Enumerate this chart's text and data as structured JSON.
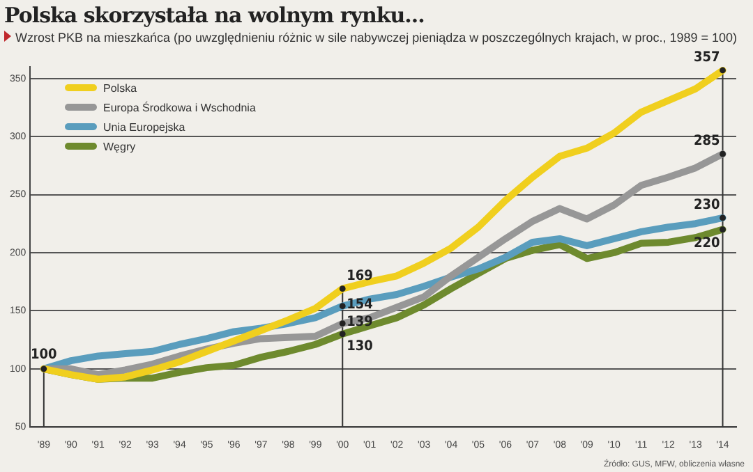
{
  "chart_data": {
    "type": "line",
    "title": "Polska skorzystała na wolnym rynku...",
    "subtitle": "Wzrost PKB na mieszkańca (po uwzględnieniu różnic w sile nabywczej pieniądza w poszczególnych krajach, w proc., 1989 = 100)",
    "categories": [
      "'89",
      "'90",
      "'91",
      "'92",
      "'93",
      "'94",
      "'95",
      "'96",
      "'97",
      "'98",
      "'99",
      "'00",
      "'01",
      "'02",
      "'03",
      "'04",
      "'05",
      "'06",
      "'07",
      "'08",
      "'09",
      "'10",
      "'11",
      "'12",
      "'13",
      "'14"
    ],
    "series": [
      {
        "name": "Polska",
        "color": "#f0cf1e",
        "values": [
          100,
          95,
          91,
          93,
          99,
          106,
          115,
          124,
          133,
          142,
          152,
          169,
          175,
          180,
          191,
          204,
          222,
          245,
          265,
          283,
          290,
          303,
          321,
          331,
          341,
          357
        ],
        "value_labels": [
          "100",
          null,
          null,
          null,
          null,
          null,
          null,
          null,
          null,
          null,
          null,
          "169",
          null,
          null,
          null,
          null,
          null,
          null,
          null,
          null,
          null,
          null,
          null,
          null,
          null,
          "357"
        ]
      },
      {
        "name": "Europa Środkowa i Wschodnia",
        "color": "#979797",
        "values": [
          100,
          100,
          95,
          99,
          104,
          111,
          117,
          122,
          126,
          127,
          128,
          139,
          144,
          153,
          162,
          180,
          196,
          212,
          227,
          238,
          229,
          241,
          258,
          265,
          273,
          285
        ],
        "value_labels": [
          null,
          null,
          null,
          null,
          null,
          null,
          null,
          null,
          null,
          null,
          null,
          "139",
          null,
          null,
          null,
          null,
          null,
          null,
          null,
          null,
          null,
          null,
          null,
          null,
          null,
          "285"
        ]
      },
      {
        "name": "Unia Europejska",
        "color": "#5a9dbd",
        "values": [
          100,
          107,
          111,
          113,
          115,
          121,
          126,
          132,
          135,
          139,
          144,
          154,
          160,
          164,
          171,
          179,
          186,
          196,
          209,
          212,
          206,
          212,
          218,
          222,
          225,
          230
        ],
        "value_labels": [
          null,
          null,
          null,
          null,
          null,
          null,
          null,
          null,
          null,
          null,
          null,
          "154",
          null,
          null,
          null,
          null,
          null,
          null,
          null,
          null,
          null,
          null,
          null,
          null,
          null,
          "230"
        ]
      },
      {
        "name": "Węgry",
        "color": "#6e8a2e",
        "values": [
          100,
          95,
          91,
          92,
          92,
          97,
          101,
          103,
          110,
          115,
          121,
          130,
          137,
          144,
          155,
          169,
          182,
          195,
          202,
          207,
          195,
          200,
          208,
          209,
          213,
          220
        ],
        "value_labels": [
          null,
          null,
          null,
          null,
          null,
          null,
          null,
          null,
          null,
          null,
          null,
          "130",
          null,
          null,
          null,
          null,
          null,
          null,
          null,
          null,
          null,
          null,
          null,
          null,
          null,
          "220"
        ]
      }
    ],
    "ylim": [
      50,
      360
    ],
    "yticks": [
      50,
      100,
      150,
      200,
      250,
      300,
      350
    ],
    "grid": "y",
    "legend": "top left",
    "marker": "none",
    "ref_lines": [
      {
        "axis": "x",
        "value": "'89",
        "color": "#333333"
      },
      {
        "axis": "x",
        "value": "'00",
        "color": "#333333"
      },
      {
        "axis": "x",
        "value": "'14",
        "color": "#333333"
      }
    ],
    "annotations": [
      "Źródło: GUS, MFW, obliczenia własne"
    ]
  }
}
